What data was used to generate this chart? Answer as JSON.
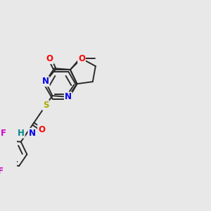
{
  "bg_color": "#e8e8e8",
  "bond_color": "#2a2a2a",
  "bond_width": 1.4,
  "atom_colors": {
    "O": "#ff0000",
    "N": "#0000ee",
    "S": "#aaaa00",
    "F": "#cc00cc",
    "H": "#008888",
    "C": "#2a2a2a"
  },
  "font_size": 8.5,
  "fig_size": [
    3.0,
    3.0
  ],
  "dpi": 100
}
